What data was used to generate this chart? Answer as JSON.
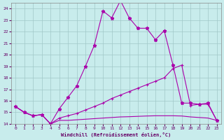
{
  "xlabel": "Windchill (Refroidissement éolien,°C)",
  "background_color": "#c8ecec",
  "grid_color": "#a0c8c8",
  "line_color": "#aa00aa",
  "xlim": [
    -0.5,
    23.5
  ],
  "ylim": [
    14,
    24.5
  ],
  "yticks": [
    14,
    15,
    16,
    17,
    18,
    19,
    20,
    21,
    22,
    23,
    24
  ],
  "xticks": [
    0,
    1,
    2,
    3,
    4,
    5,
    6,
    7,
    8,
    9,
    10,
    11,
    12,
    13,
    14,
    15,
    16,
    17,
    18,
    19,
    20,
    21,
    22,
    23
  ],
  "series1_x": [
    0,
    1,
    2,
    3,
    4,
    5,
    6,
    7,
    8,
    9,
    10,
    11,
    12,
    13,
    14,
    15,
    16,
    17,
    18,
    19,
    20,
    21,
    22,
    23
  ],
  "series1_y": [
    15.5,
    15.0,
    14.7,
    14.8,
    14.0,
    15.3,
    16.3,
    17.3,
    19.0,
    20.8,
    23.8,
    23.2,
    24.7,
    23.2,
    22.3,
    22.3,
    21.3,
    22.1,
    19.1,
    15.8,
    15.8,
    15.7,
    15.8,
    14.3
  ],
  "series2_x": [
    0,
    1,
    2,
    3,
    4,
    5,
    6,
    7,
    8,
    9,
    10,
    11,
    12,
    13,
    14,
    15,
    16,
    17,
    18,
    19,
    20,
    21,
    22,
    23
  ],
  "series2_y": [
    15.5,
    15.0,
    14.7,
    14.8,
    14.0,
    14.5,
    14.7,
    14.9,
    15.2,
    15.5,
    15.8,
    16.2,
    16.5,
    16.8,
    17.1,
    17.4,
    17.7,
    18.0,
    18.8,
    19.1,
    15.6,
    15.7,
    15.7,
    14.3
  ],
  "series3_x": [
    0,
    1,
    2,
    3,
    4,
    5,
    6,
    7,
    8,
    9,
    10,
    11,
    12,
    13,
    14,
    15,
    16,
    17,
    18,
    19,
    20,
    21,
    22,
    23
  ],
  "series3_y": [
    15.5,
    15.0,
    14.7,
    14.8,
    14.0,
    14.3,
    14.3,
    14.35,
    14.4,
    14.45,
    14.5,
    14.55,
    14.6,
    14.62,
    14.65,
    14.68,
    14.7,
    14.7,
    14.7,
    14.68,
    14.6,
    14.55,
    14.5,
    14.3
  ]
}
